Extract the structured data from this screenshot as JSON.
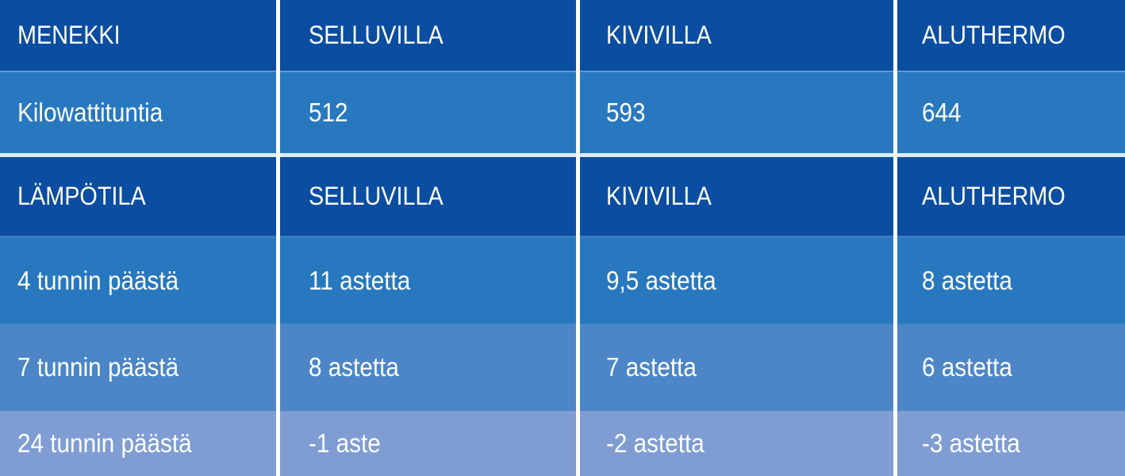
{
  "table": {
    "sections": [
      {
        "header": {
          "label": "MENEKKI",
          "cols": [
            "SELLUVILLA",
            "KIVIVILLA",
            "ALUTHERMO"
          ]
        },
        "rows": [
          {
            "label": "Kilowattituntia",
            "values": [
              "512",
              "593",
              "644"
            ]
          }
        ]
      },
      {
        "header": {
          "label": "LÄMPÖTILA",
          "cols": [
            "SELLUVILLA",
            "KIVIVILLA",
            "ALUTHERMO"
          ]
        },
        "rows": [
          {
            "label": "4 tunnin päästä",
            "values": [
              "11 astetta",
              "9,5 astetta",
              "8 astetta"
            ]
          },
          {
            "label": "7 tunnin päästä",
            "values": [
              "8 astetta",
              "7 astetta",
              "6 astetta"
            ]
          },
          {
            "label": "24 tunnin päästä",
            "values": [
              "-1 aste",
              "-2 astetta",
              "-3 astetta"
            ]
          }
        ]
      }
    ]
  },
  "colors": {
    "header_bg": "#0B4DA0",
    "row_medium": "#2878C0",
    "row_light": "#4C86C6",
    "row_lighter": "#7F9DD3",
    "divider_light_blue": "#5E99D4",
    "divider_white": "#DFEBF7",
    "divider_subtle": "#3B7CC2",
    "grid_line": "#FBFDFF",
    "text": "#FFFFFF"
  },
  "chart_data": [
    {
      "type": "table",
      "title": "MENEKKI",
      "columns": [
        "MENEKKI",
        "SELLUVILLA",
        "KIVIVILLA",
        "ALUTHERMO"
      ],
      "rows": [
        [
          "Kilowattituntia",
          "512",
          "593",
          "644"
        ]
      ],
      "numeric": {
        "kilowattituntia": {
          "SELLUVILLA": 512,
          "KIVIVILLA": 593,
          "ALUTHERMO": 644
        }
      }
    },
    {
      "type": "table",
      "title": "LÄMPÖTILA",
      "columns": [
        "LÄMPÖTILA",
        "SELLUVILLA",
        "KIVIVILLA",
        "ALUTHERMO"
      ],
      "rows": [
        [
          "4 tunnin päästä",
          "11 astetta",
          "9,5 astetta",
          "8 astetta"
        ],
        [
          "7 tunnin päästä",
          "8 astetta",
          "7 astetta",
          "6 astetta"
        ],
        [
          "24 tunnin päästä",
          "-1 aste",
          "-2 astetta",
          "-3 astetta"
        ]
      ],
      "numeric": {
        "4_tunnin_paasta": {
          "SELLUVILLA": 11,
          "KIVIVILLA": 9.5,
          "ALUTHERMO": 8
        },
        "7_tunnin_paasta": {
          "SELLUVILLA": 8,
          "KIVIVILLA": 7,
          "ALUTHERMO": 6
        },
        "24_tunnin_paasta": {
          "SELLUVILLA": -1,
          "KIVIVILLA": -2,
          "ALUTHERMO": -3
        }
      },
      "unit": "astetta (°C)"
    }
  ]
}
